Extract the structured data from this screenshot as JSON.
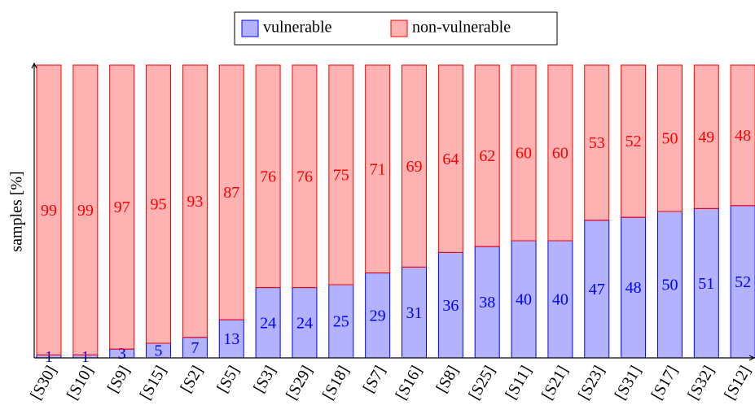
{
  "chart_data": {
    "type": "stacked_bar",
    "y_label": "samples [%]",
    "categories": [
      "[S30]",
      "[S10]",
      "[S9]",
      "[S15]",
      "[S2]",
      "[S5]",
      "[S3]",
      "[S29]",
      "[S18]",
      "[S7]",
      "[S16]",
      "[S8]",
      "[S25]",
      "[S11]",
      "[S21]",
      "[S23]",
      "[S31]",
      "[S17]",
      "[S32]",
      "[S12]"
    ],
    "series": [
      {
        "name": "vulnerable",
        "color": "#0000ff",
        "values": [
          1,
          1,
          3,
          5,
          7,
          13,
          24,
          24,
          25,
          29,
          31,
          36,
          38,
          40,
          40,
          47,
          48,
          50,
          51,
          52
        ]
      },
      {
        "name": "non-vulnerable",
        "color": "#ff0000",
        "values": [
          99,
          99,
          97,
          95,
          93,
          87,
          76,
          76,
          75,
          71,
          69,
          64,
          62,
          60,
          60,
          53,
          52,
          50,
          49,
          48
        ]
      }
    ],
    "ylim": [
      0,
      100
    ],
    "legend": "top"
  }
}
